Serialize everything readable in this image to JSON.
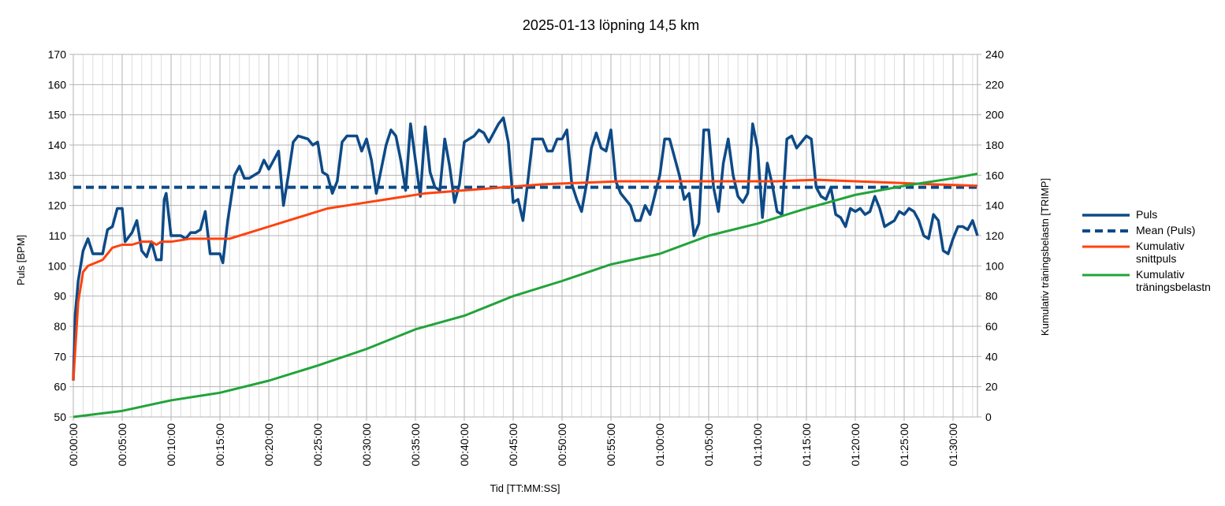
{
  "chart_data": {
    "type": "line",
    "title": "2025-01-13 löpning 14,5 km",
    "xlabel": "Tid [TT:MM:SS]",
    "ylabel": "Puls [BPM]",
    "y2label": "Kumulativ träningsbelastn [TRIMP]",
    "xlim": [
      0,
      5550
    ],
    "ylim": [
      50,
      170
    ],
    "y2lim": [
      0,
      240
    ],
    "yticks": [
      50,
      60,
      70,
      80,
      90,
      100,
      110,
      120,
      130,
      140,
      150,
      160,
      170
    ],
    "y2ticks": [
      0,
      20,
      40,
      60,
      80,
      100,
      120,
      140,
      160,
      180,
      200,
      220,
      240
    ],
    "xticks": [
      {
        "value": 0,
        "label": "00:00:00"
      },
      {
        "value": 300,
        "label": "00:05:00"
      },
      {
        "value": 600,
        "label": "00:10:00"
      },
      {
        "value": 900,
        "label": "00:15:00"
      },
      {
        "value": 1200,
        "label": "00:20:00"
      },
      {
        "value": 1500,
        "label": "00:25:00"
      },
      {
        "value": 1800,
        "label": "00:30:00"
      },
      {
        "value": 2100,
        "label": "00:35:00"
      },
      {
        "value": 2400,
        "label": "00:40:00"
      },
      {
        "value": 2700,
        "label": "00:45:00"
      },
      {
        "value": 3000,
        "label": "00:50:00"
      },
      {
        "value": 3300,
        "label": "00:55:00"
      },
      {
        "value": 3600,
        "label": "01:00:00"
      },
      {
        "value": 3900,
        "label": "01:05:00"
      },
      {
        "value": 4200,
        "label": "01:10:00"
      },
      {
        "value": 4500,
        "label": "01:15:00"
      },
      {
        "value": 4800,
        "label": "01:20:00"
      },
      {
        "value": 5100,
        "label": "01:25:00"
      },
      {
        "value": 5400,
        "label": "01:30:00"
      }
    ],
    "xminorticks": [
      0,
      60,
      120,
      180,
      240,
      300,
      360,
      420,
      480,
      540,
      600,
      660,
      720,
      780,
      840,
      900,
      960,
      1020,
      1080,
      1140,
      1200,
      1260,
      1320,
      1380,
      1440,
      1500,
      1560,
      1620,
      1680,
      1740,
      1800,
      1860,
      1920,
      1980,
      2040,
      2100,
      2160,
      2220,
      2280,
      2340,
      2400,
      2460,
      2520,
      2580,
      2640,
      2700,
      2760,
      2820,
      2880,
      2940,
      3000,
      3060,
      3120,
      3180,
      3240,
      3300,
      3360,
      3420,
      3480,
      3540,
      3600,
      3660,
      3720,
      3780,
      3840,
      3900,
      3960,
      4020,
      4080,
      4140,
      4200,
      4260,
      4320,
      4380,
      4440,
      4500,
      4560,
      4620,
      4680,
      4740,
      4800,
      4860,
      4920,
      4980,
      5040,
      5100,
      5160,
      5220,
      5280,
      5340,
      5400,
      5460,
      5520
    ],
    "grid": true,
    "legend": "right",
    "series": [
      {
        "name": "Puls",
        "color": "#0d4a87",
        "width": 3.5,
        "x": [
          0,
          12,
          30,
          60,
          90,
          120,
          180,
          210,
          240,
          270,
          300,
          318,
          360,
          390,
          420,
          450,
          480,
          510,
          540,
          558,
          570,
          600,
          660,
          690,
          720,
          750,
          780,
          810,
          840,
          870,
          900,
          918,
          948,
          990,
          1020,
          1050,
          1080,
          1140,
          1170,
          1200,
          1260,
          1290,
          1320,
          1350,
          1380,
          1440,
          1470,
          1500,
          1530,
          1560,
          1590,
          1620,
          1650,
          1680,
          1740,
          1770,
          1800,
          1830,
          1860,
          1920,
          1950,
          1980,
          2010,
          2040,
          2070,
          2100,
          2130,
          2160,
          2190,
          2220,
          2250,
          2280,
          2310,
          2340,
          2370,
          2400,
          2460,
          2490,
          2520,
          2550,
          2580,
          2610,
          2640,
          2670,
          2700,
          2730,
          2760,
          2790,
          2820,
          2880,
          2910,
          2940,
          2970,
          3000,
          3030,
          3060,
          3090,
          3120,
          3150,
          3180,
          3210,
          3240,
          3270,
          3300,
          3330,
          3360,
          3390,
          3420,
          3450,
          3480,
          3510,
          3540,
          3600,
          3630,
          3660,
          3720,
          3750,
          3780,
          3810,
          3840,
          3870,
          3900,
          3930,
          3960,
          3990,
          4020,
          4050,
          4080,
          4110,
          4140,
          4170,
          4200,
          4230,
          4260,
          4290,
          4320,
          4350,
          4380,
          4410,
          4440,
          4470,
          4500,
          4530,
          4560,
          4590,
          4620,
          4650,
          4680,
          4710,
          4740,
          4770,
          4800,
          4830,
          4860,
          4890,
          4920,
          4950,
          4980,
          5010,
          5040,
          5070,
          5100,
          5130,
          5160,
          5190,
          5220,
          5250,
          5280,
          5310,
          5340,
          5370,
          5400,
          5430,
          5460,
          5490,
          5520,
          5550
        ],
        "values": [
          62,
          84,
          95,
          105,
          109,
          104,
          104,
          112,
          113,
          119,
          119,
          108,
          111,
          115,
          105,
          103,
          108,
          102,
          102,
          122,
          124,
          110,
          110,
          109,
          111,
          111,
          112,
          118,
          104,
          104,
          104,
          101,
          115,
          130,
          133,
          129,
          129,
          131,
          135,
          132,
          138,
          120,
          130,
          141,
          143,
          142,
          140,
          141,
          131,
          130,
          124,
          128,
          141,
          143,
          143,
          138,
          142,
          135,
          124,
          140,
          145,
          143,
          135,
          125,
          147,
          135,
          123,
          146,
          131,
          126,
          125,
          142,
          133,
          121,
          127,
          141,
          143,
          145,
          144,
          141,
          144,
          147,
          149,
          141,
          121,
          122,
          115,
          128,
          142,
          142,
          138,
          138,
          142,
          142,
          145,
          127,
          122,
          118,
          127,
          139,
          144,
          139,
          138,
          145,
          128,
          124,
          122,
          120,
          115,
          115,
          120,
          117,
          130,
          142,
          142,
          130,
          122,
          124,
          110,
          114,
          145,
          145,
          126,
          118,
          134,
          142,
          130,
          123,
          121,
          124,
          147,
          139,
          116,
          134,
          127,
          118,
          117,
          142,
          143,
          139,
          141,
          143,
          142,
          126,
          123,
          122,
          126,
          117,
          116,
          113,
          119,
          118,
          119,
          117,
          118,
          123,
          119,
          113,
          114,
          115,
          118,
          117,
          119,
          118,
          115,
          110,
          109,
          117,
          115,
          105,
          104,
          109,
          113,
          113,
          112,
          115,
          110
        ]
      },
      {
        "name": "Mean (Puls)",
        "color": "#0d4a87",
        "width": 4,
        "dash": true,
        "x": [
          0,
          5550
        ],
        "values": [
          126,
          126
        ]
      },
      {
        "name": "Kumulativ snittpuls",
        "color": "#ff420e",
        "width": 3,
        "x": [
          0,
          30,
          60,
          90,
          180,
          240,
          300,
          360,
          420,
          480,
          510,
          540,
          600,
          720,
          840,
          900,
          960,
          1080,
          1200,
          1320,
          1440,
          1560,
          1680,
          1800,
          1920,
          2040,
          2160,
          2400,
          2640,
          2880,
          3120,
          3360,
          3600,
          3840,
          4080,
          4320,
          4560,
          4800,
          5040,
          5280,
          5550
        ],
        "values": [
          62,
          88,
          98,
          100,
          102,
          106,
          107,
          107,
          108,
          108,
          107,
          108,
          108,
          109,
          109,
          109,
          109,
          111,
          113,
          115,
          117,
          119,
          120,
          121,
          122,
          123,
          124,
          125,
          126,
          127,
          127.5,
          128,
          128,
          128,
          128,
          128,
          128.5,
          128,
          127.5,
          127,
          126.5
        ]
      },
      {
        "name": "Kumulativ träningsbelastn",
        "color": "#22a33a",
        "width": 3,
        "axis": "y2",
        "x": [
          0,
          300,
          600,
          900,
          1200,
          1500,
          1800,
          2100,
          2400,
          2700,
          3000,
          3300,
          3600,
          3900,
          4200,
          4500,
          4800,
          5100,
          5400,
          5550
        ],
        "values": [
          0,
          4,
          11,
          16,
          24,
          34,
          45,
          58,
          67,
          80,
          90,
          101,
          108,
          120,
          128,
          138,
          147,
          153,
          158,
          161
        ]
      }
    ]
  }
}
